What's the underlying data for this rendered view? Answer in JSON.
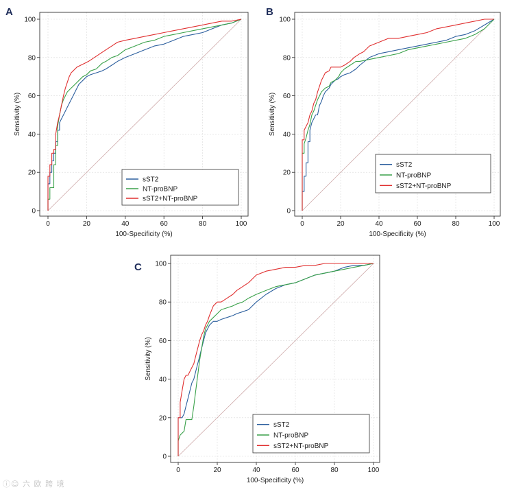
{
  "colors": {
    "sST2": "#2c5f9e",
    "NT-proBNP": "#3aa14a",
    "sST2+NT-proBNP": "#e03030"
  },
  "chart_data": [
    {
      "type": "line",
      "panel": "A",
      "xlabel": "100-Specificity (%)",
      "ylabel": "Sensitivity (%)",
      "xlim": [
        0,
        100
      ],
      "ylim": [
        0,
        100
      ],
      "ticks": [
        "0",
        "20",
        "40",
        "60",
        "80",
        "100"
      ],
      "grid": true,
      "legend": "bottom-right",
      "series": [
        {
          "name": "sST2",
          "color": "#2c5f9e",
          "x": [
            0,
            0,
            1,
            1,
            2,
            2,
            3,
            3,
            4,
            4,
            5,
            5,
            6,
            6,
            7,
            8,
            9,
            10,
            11,
            12,
            13,
            14,
            15,
            16,
            18,
            20,
            22,
            25,
            28,
            30,
            33,
            36,
            40,
            45,
            50,
            55,
            60,
            65,
            70,
            75,
            80,
            85,
            90,
            95,
            100
          ],
          "y": [
            0,
            14,
            14,
            20,
            20,
            26,
            26,
            30,
            30,
            36,
            36,
            42,
            42,
            46,
            48,
            50,
            52,
            54,
            56,
            58,
            60,
            62,
            64,
            66,
            68,
            70,
            71,
            72,
            73,
            74,
            76,
            78,
            80,
            82,
            84,
            86,
            87,
            89,
            91,
            92,
            93,
            95,
            97,
            98,
            100
          ]
        },
        {
          "name": "NT-proBNP",
          "color": "#3aa14a",
          "x": [
            0,
            0,
            1,
            1,
            2,
            3,
            3,
            4,
            4,
            5,
            5,
            6,
            7,
            8,
            9,
            10,
            12,
            14,
            15,
            16,
            18,
            20,
            22,
            25,
            28,
            30,
            33,
            36,
            40,
            45,
            50,
            55,
            60,
            65,
            70,
            75,
            80,
            85,
            90,
            95,
            100
          ],
          "y": [
            0,
            6,
            6,
            12,
            12,
            12,
            24,
            24,
            34,
            34,
            44,
            50,
            55,
            58,
            60,
            62,
            64,
            66,
            67,
            68,
            70,
            71,
            73,
            74,
            77,
            78,
            80,
            81,
            84,
            86,
            88,
            89,
            91,
            92,
            93,
            94,
            95,
            96,
            97,
            98,
            100
          ]
        },
        {
          "name": "sST2+NT-proBNP",
          "color": "#e03030",
          "x": [
            0,
            0,
            1,
            1,
            2,
            2,
            3,
            3,
            4,
            4,
            5,
            6,
            7,
            8,
            9,
            10,
            11,
            12,
            13,
            14,
            15,
            17,
            19,
            21,
            24,
            27,
            30,
            33,
            36,
            40,
            45,
            50,
            55,
            60,
            65,
            70,
            75,
            80,
            85,
            90,
            95,
            100
          ],
          "y": [
            0,
            18,
            18,
            24,
            24,
            30,
            30,
            32,
            32,
            40,
            46,
            50,
            55,
            60,
            64,
            67,
            70,
            72,
            73,
            74,
            75,
            76,
            77,
            78,
            80,
            82,
            84,
            86,
            88,
            89,
            90,
            91,
            92,
            93,
            94,
            95,
            96,
            97,
            98,
            99,
            99,
            100
          ]
        }
      ]
    },
    {
      "type": "line",
      "panel": "B",
      "xlabel": "100-Specificity (%)",
      "ylabel": "Sensitivity (%)",
      "xlim": [
        0,
        100
      ],
      "ylim": [
        0,
        100
      ],
      "ticks": [
        "0",
        "20",
        "40",
        "60",
        "80",
        "100"
      ],
      "grid": true,
      "legend": "bottom-right",
      "series": [
        {
          "name": "sST2",
          "color": "#2c5f9e",
          "x": [
            0,
            0,
            1,
            1,
            2,
            2,
            3,
            3,
            4,
            4,
            5,
            6,
            7,
            8,
            9,
            10,
            11,
            12,
            14,
            15,
            17,
            19,
            20,
            22,
            25,
            28,
            30,
            35,
            40,
            45,
            50,
            55,
            60,
            65,
            70,
            75,
            80,
            85,
            90,
            95,
            100
          ],
          "y": [
            0,
            10,
            10,
            18,
            18,
            25,
            25,
            36,
            36,
            42,
            46,
            48,
            50,
            50,
            55,
            57,
            60,
            62,
            64,
            66,
            68,
            69,
            70,
            71,
            72,
            74,
            76,
            80,
            82,
            83,
            84,
            85,
            86,
            87,
            88,
            89,
            91,
            92,
            94,
            97,
            100
          ]
        },
        {
          "name": "NT-proBNP",
          "color": "#3aa14a",
          "x": [
            0,
            0,
            1,
            1,
            2,
            3,
            4,
            5,
            6,
            7,
            8,
            9,
            10,
            11,
            12,
            14,
            15,
            17,
            19,
            20,
            22,
            25,
            28,
            30,
            35,
            40,
            45,
            50,
            55,
            60,
            65,
            70,
            75,
            80,
            85,
            90,
            95,
            100
          ],
          "y": [
            0,
            30,
            30,
            35,
            38,
            42,
            45,
            50,
            52,
            55,
            58,
            60,
            62,
            63,
            64,
            65,
            67,
            68,
            70,
            72,
            74,
            76,
            78,
            78,
            79,
            80,
            81,
            82,
            84,
            85,
            86,
            87,
            88,
            89,
            90,
            92,
            95,
            100
          ]
        },
        {
          "name": "sST2+NT-proBNP",
          "color": "#e03030",
          "x": [
            0,
            0,
            1,
            1,
            2,
            3,
            4,
            5,
            6,
            7,
            8,
            9,
            10,
            11,
            12,
            14,
            15,
            17,
            20,
            22,
            25,
            27,
            30,
            32,
            35,
            40,
            45,
            50,
            55,
            60,
            65,
            70,
            75,
            80,
            85,
            90,
            95,
            100
          ],
          "y": [
            0,
            37,
            37,
            42,
            44,
            46,
            50,
            52,
            56,
            58,
            62,
            65,
            68,
            70,
            72,
            73,
            75,
            75,
            75,
            76,
            78,
            80,
            82,
            83,
            86,
            88,
            90,
            90,
            91,
            92,
            93,
            95,
            96,
            97,
            98,
            99,
            100,
            100
          ]
        }
      ]
    },
    {
      "type": "line",
      "panel": "C",
      "xlabel": "100-Specificity (%)",
      "ylabel": "Sensitivity (%)",
      "xlim": [
        0,
        100
      ],
      "ylim": [
        0,
        100
      ],
      "ticks": [
        "0",
        "20",
        "40",
        "60",
        "80",
        "100"
      ],
      "grid": true,
      "legend": "bottom-right",
      "series": [
        {
          "name": "sST2",
          "color": "#2c5f9e",
          "x": [
            0,
            0,
            2,
            3,
            4,
            5,
            6,
            7,
            8,
            9,
            10,
            11,
            12,
            13,
            14,
            15,
            16,
            18,
            20,
            22,
            25,
            28,
            30,
            33,
            36,
            40,
            45,
            50,
            55,
            60,
            65,
            70,
            75,
            80,
            85,
            90,
            95,
            100
          ],
          "y": [
            0,
            20,
            20,
            22,
            26,
            30,
            34,
            38,
            40,
            44,
            48,
            52,
            56,
            60,
            64,
            66,
            68,
            70,
            70,
            71,
            72,
            73,
            74,
            75,
            76,
            80,
            84,
            87,
            89,
            90,
            92,
            94,
            95,
            96,
            98,
            99,
            99,
            100
          ]
        },
        {
          "name": "NT-proBNP",
          "color": "#3aa14a",
          "x": [
            0,
            0,
            1,
            2,
            3,
            4,
            5,
            6,
            7,
            8,
            9,
            10,
            11,
            12,
            13,
            14,
            15,
            16,
            18,
            20,
            22,
            25,
            28,
            30,
            33,
            36,
            40,
            45,
            50,
            55,
            60,
            65,
            70,
            75,
            80,
            85,
            90,
            95,
            100
          ],
          "y": [
            0,
            8,
            11,
            12,
            13,
            19,
            19,
            19,
            19,
            26,
            34,
            42,
            50,
            56,
            62,
            66,
            68,
            70,
            72,
            74,
            76,
            77,
            78,
            79,
            80,
            82,
            84,
            86,
            88,
            89,
            90,
            92,
            94,
            95,
            96,
            97,
            98,
            99,
            100
          ]
        },
        {
          "name": "sST2+NT-proBNP",
          "color": "#e03030",
          "x": [
            0,
            0,
            1,
            1,
            2,
            3,
            4,
            5,
            6,
            7,
            8,
            9,
            10,
            11,
            12,
            13,
            14,
            15,
            16,
            18,
            20,
            22,
            25,
            28,
            30,
            33,
            36,
            40,
            45,
            50,
            55,
            60,
            65,
            70,
            75,
            80,
            85,
            90,
            95,
            100
          ],
          "y": [
            0,
            20,
            20,
            28,
            34,
            40,
            42,
            42,
            44,
            46,
            48,
            52,
            56,
            60,
            63,
            65,
            68,
            70,
            73,
            78,
            80,
            80,
            82,
            84,
            86,
            88,
            90,
            94,
            96,
            97,
            98,
            98,
            99,
            99,
            100,
            100,
            100,
            100,
            100,
            100
          ]
        }
      ]
    }
  ]
}
